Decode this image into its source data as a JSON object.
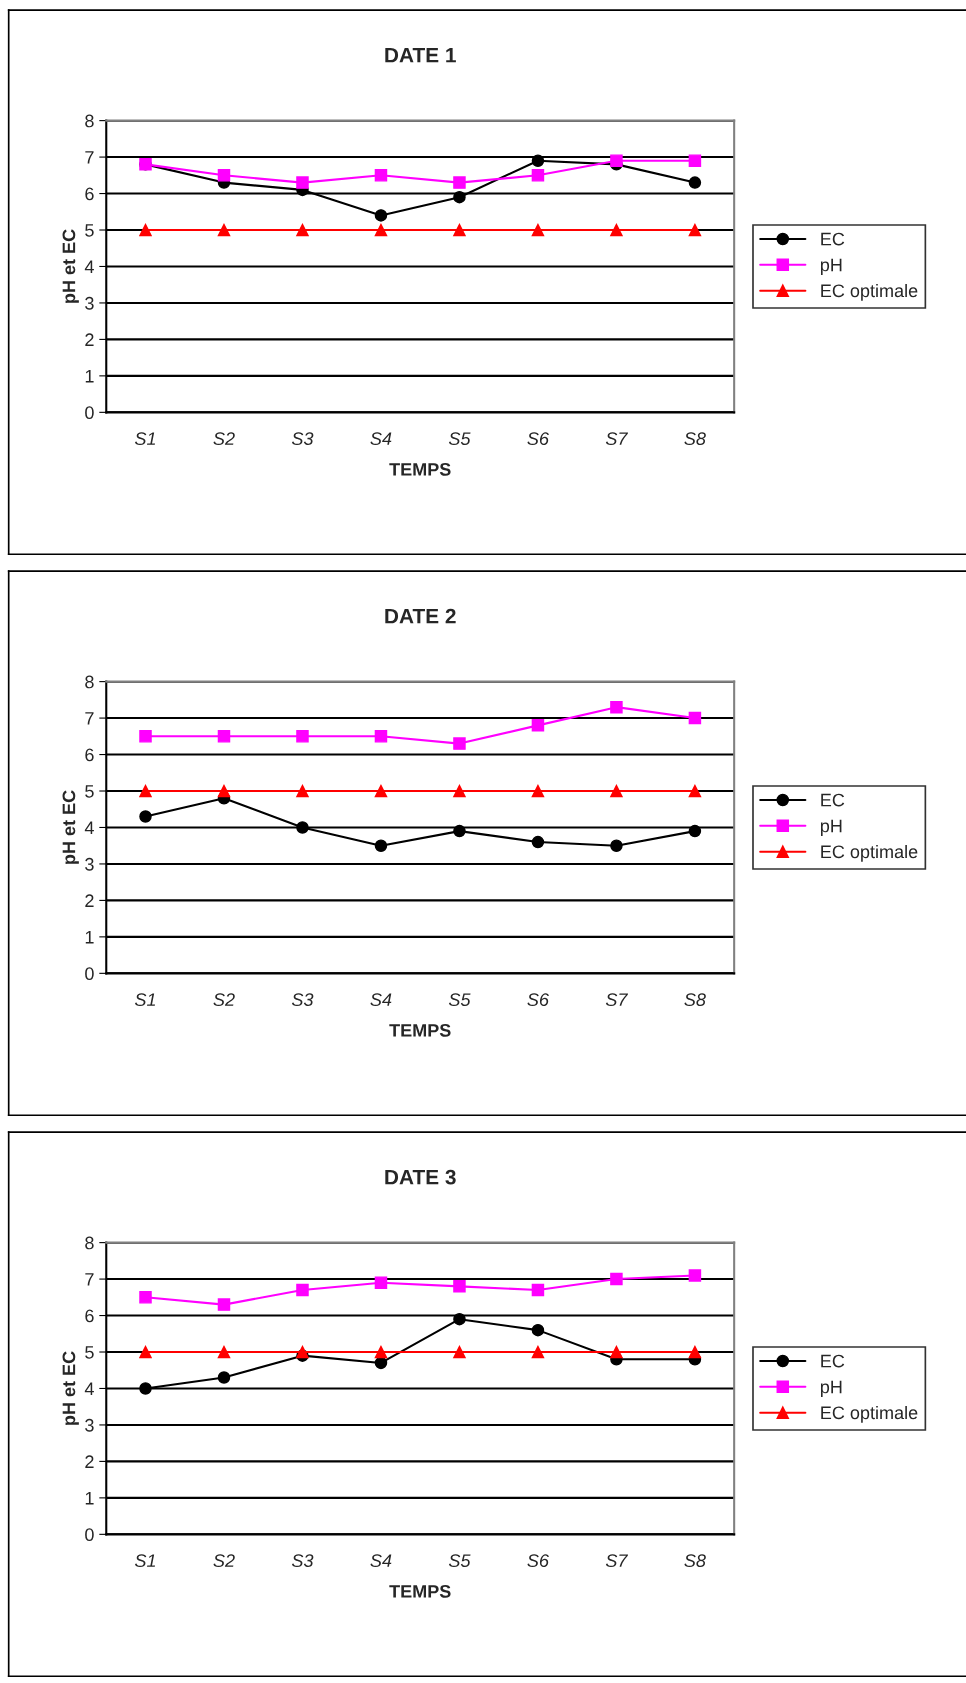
{
  "chart_data": [
    {
      "type": "line",
      "title": "DATE 1",
      "xlabel": "TEMPS",
      "ylabel": "pH et EC",
      "categories": [
        "S1",
        "S2",
        "S3",
        "S4",
        "S5",
        "S6",
        "S7",
        "S8"
      ],
      "ylim": [
        0,
        8
      ],
      "yticks": [
        0,
        1,
        2,
        3,
        4,
        5,
        6,
        7,
        8
      ],
      "grid": "y",
      "legend": "right",
      "series": [
        {
          "name": "EC",
          "color": "#000000",
          "marker": "circle",
          "values": [
            6.8,
            6.3,
            6.1,
            5.4,
            5.9,
            6.9,
            6.8,
            6.3
          ]
        },
        {
          "name": "pH",
          "color": "#ff00ff",
          "marker": "square",
          "values": [
            6.8,
            6.5,
            6.3,
            6.5,
            6.3,
            6.5,
            6.9,
            6.9
          ]
        },
        {
          "name": "EC optimale",
          "color": "#ff0000",
          "marker": "triangle",
          "values": [
            5,
            5,
            5,
            5,
            5,
            5,
            5,
            5
          ]
        }
      ]
    },
    {
      "type": "line",
      "title": "DATE 2",
      "xlabel": "TEMPS",
      "ylabel": "pH et EC",
      "categories": [
        "S1",
        "S2",
        "S3",
        "S4",
        "S5",
        "S6",
        "S7",
        "S8"
      ],
      "ylim": [
        0,
        8
      ],
      "yticks": [
        0,
        1,
        2,
        3,
        4,
        5,
        6,
        7,
        8
      ],
      "grid": "y",
      "legend": "right",
      "series": [
        {
          "name": "EC",
          "color": "#000000",
          "marker": "circle",
          "values": [
            4.3,
            4.8,
            4.0,
            3.5,
            3.9,
            3.6,
            3.5,
            3.9
          ]
        },
        {
          "name": "pH",
          "color": "#ff00ff",
          "marker": "square",
          "values": [
            6.5,
            6.5,
            6.5,
            6.5,
            6.3,
            6.8,
            7.3,
            7.0
          ]
        },
        {
          "name": "EC optimale",
          "color": "#ff0000",
          "marker": "triangle",
          "values": [
            5,
            5,
            5,
            5,
            5,
            5,
            5,
            5
          ]
        }
      ]
    },
    {
      "type": "line",
      "title": "DATE 3",
      "xlabel": "TEMPS",
      "ylabel": "pH et EC",
      "categories": [
        "S1",
        "S2",
        "S3",
        "S4",
        "S5",
        "S6",
        "S7",
        "S8"
      ],
      "ylim": [
        0,
        8
      ],
      "yticks": [
        0,
        1,
        2,
        3,
        4,
        5,
        6,
        7,
        8
      ],
      "grid": "y",
      "legend": "right",
      "series": [
        {
          "name": "EC",
          "color": "#000000",
          "marker": "circle",
          "values": [
            4.0,
            4.3,
            4.9,
            4.7,
            5.9,
            5.6,
            4.8,
            4.8
          ]
        },
        {
          "name": "pH",
          "color": "#ff00ff",
          "marker": "square",
          "values": [
            6.5,
            6.3,
            6.7,
            6.9,
            6.8,
            6.7,
            7.0,
            7.1
          ]
        },
        {
          "name": "EC optimale",
          "color": "#ff0000",
          "marker": "triangle",
          "values": [
            5,
            5,
            5,
            5,
            5,
            5,
            5,
            5
          ]
        }
      ]
    }
  ]
}
